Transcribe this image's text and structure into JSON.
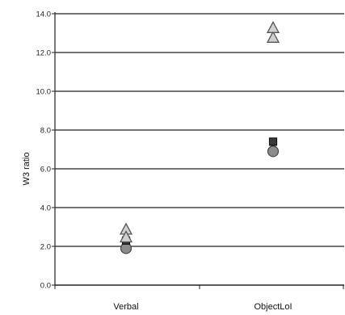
{
  "chart_data": {
    "type": "scatter",
    "title": "",
    "xlabel": "",
    "ylabel": "W3 ratio",
    "categories": [
      "Verbal",
      "ObjectLoI"
    ],
    "y_ticks": [
      "0.0",
      "2.0",
      "4.0",
      "6.0",
      "8.0",
      "10.0",
      "12.0",
      "14.0"
    ],
    "ylim": [
      0,
      14
    ],
    "grid": true,
    "legend": "none",
    "series": [
      {
        "marker": "circle",
        "color": "#8c8c8c",
        "values": [
          1.9,
          6.9
        ]
      },
      {
        "marker": "square",
        "color": "#3a3a3a",
        "values": [
          2.3,
          7.4
        ]
      },
      {
        "marker": "triangle",
        "color": "#d0d0d0",
        "values": [
          2.9,
          12.8
        ]
      },
      {
        "marker": "triangle",
        "color": "#d0d0d0",
        "values": [
          2.5,
          13.3
        ]
      }
    ]
  }
}
